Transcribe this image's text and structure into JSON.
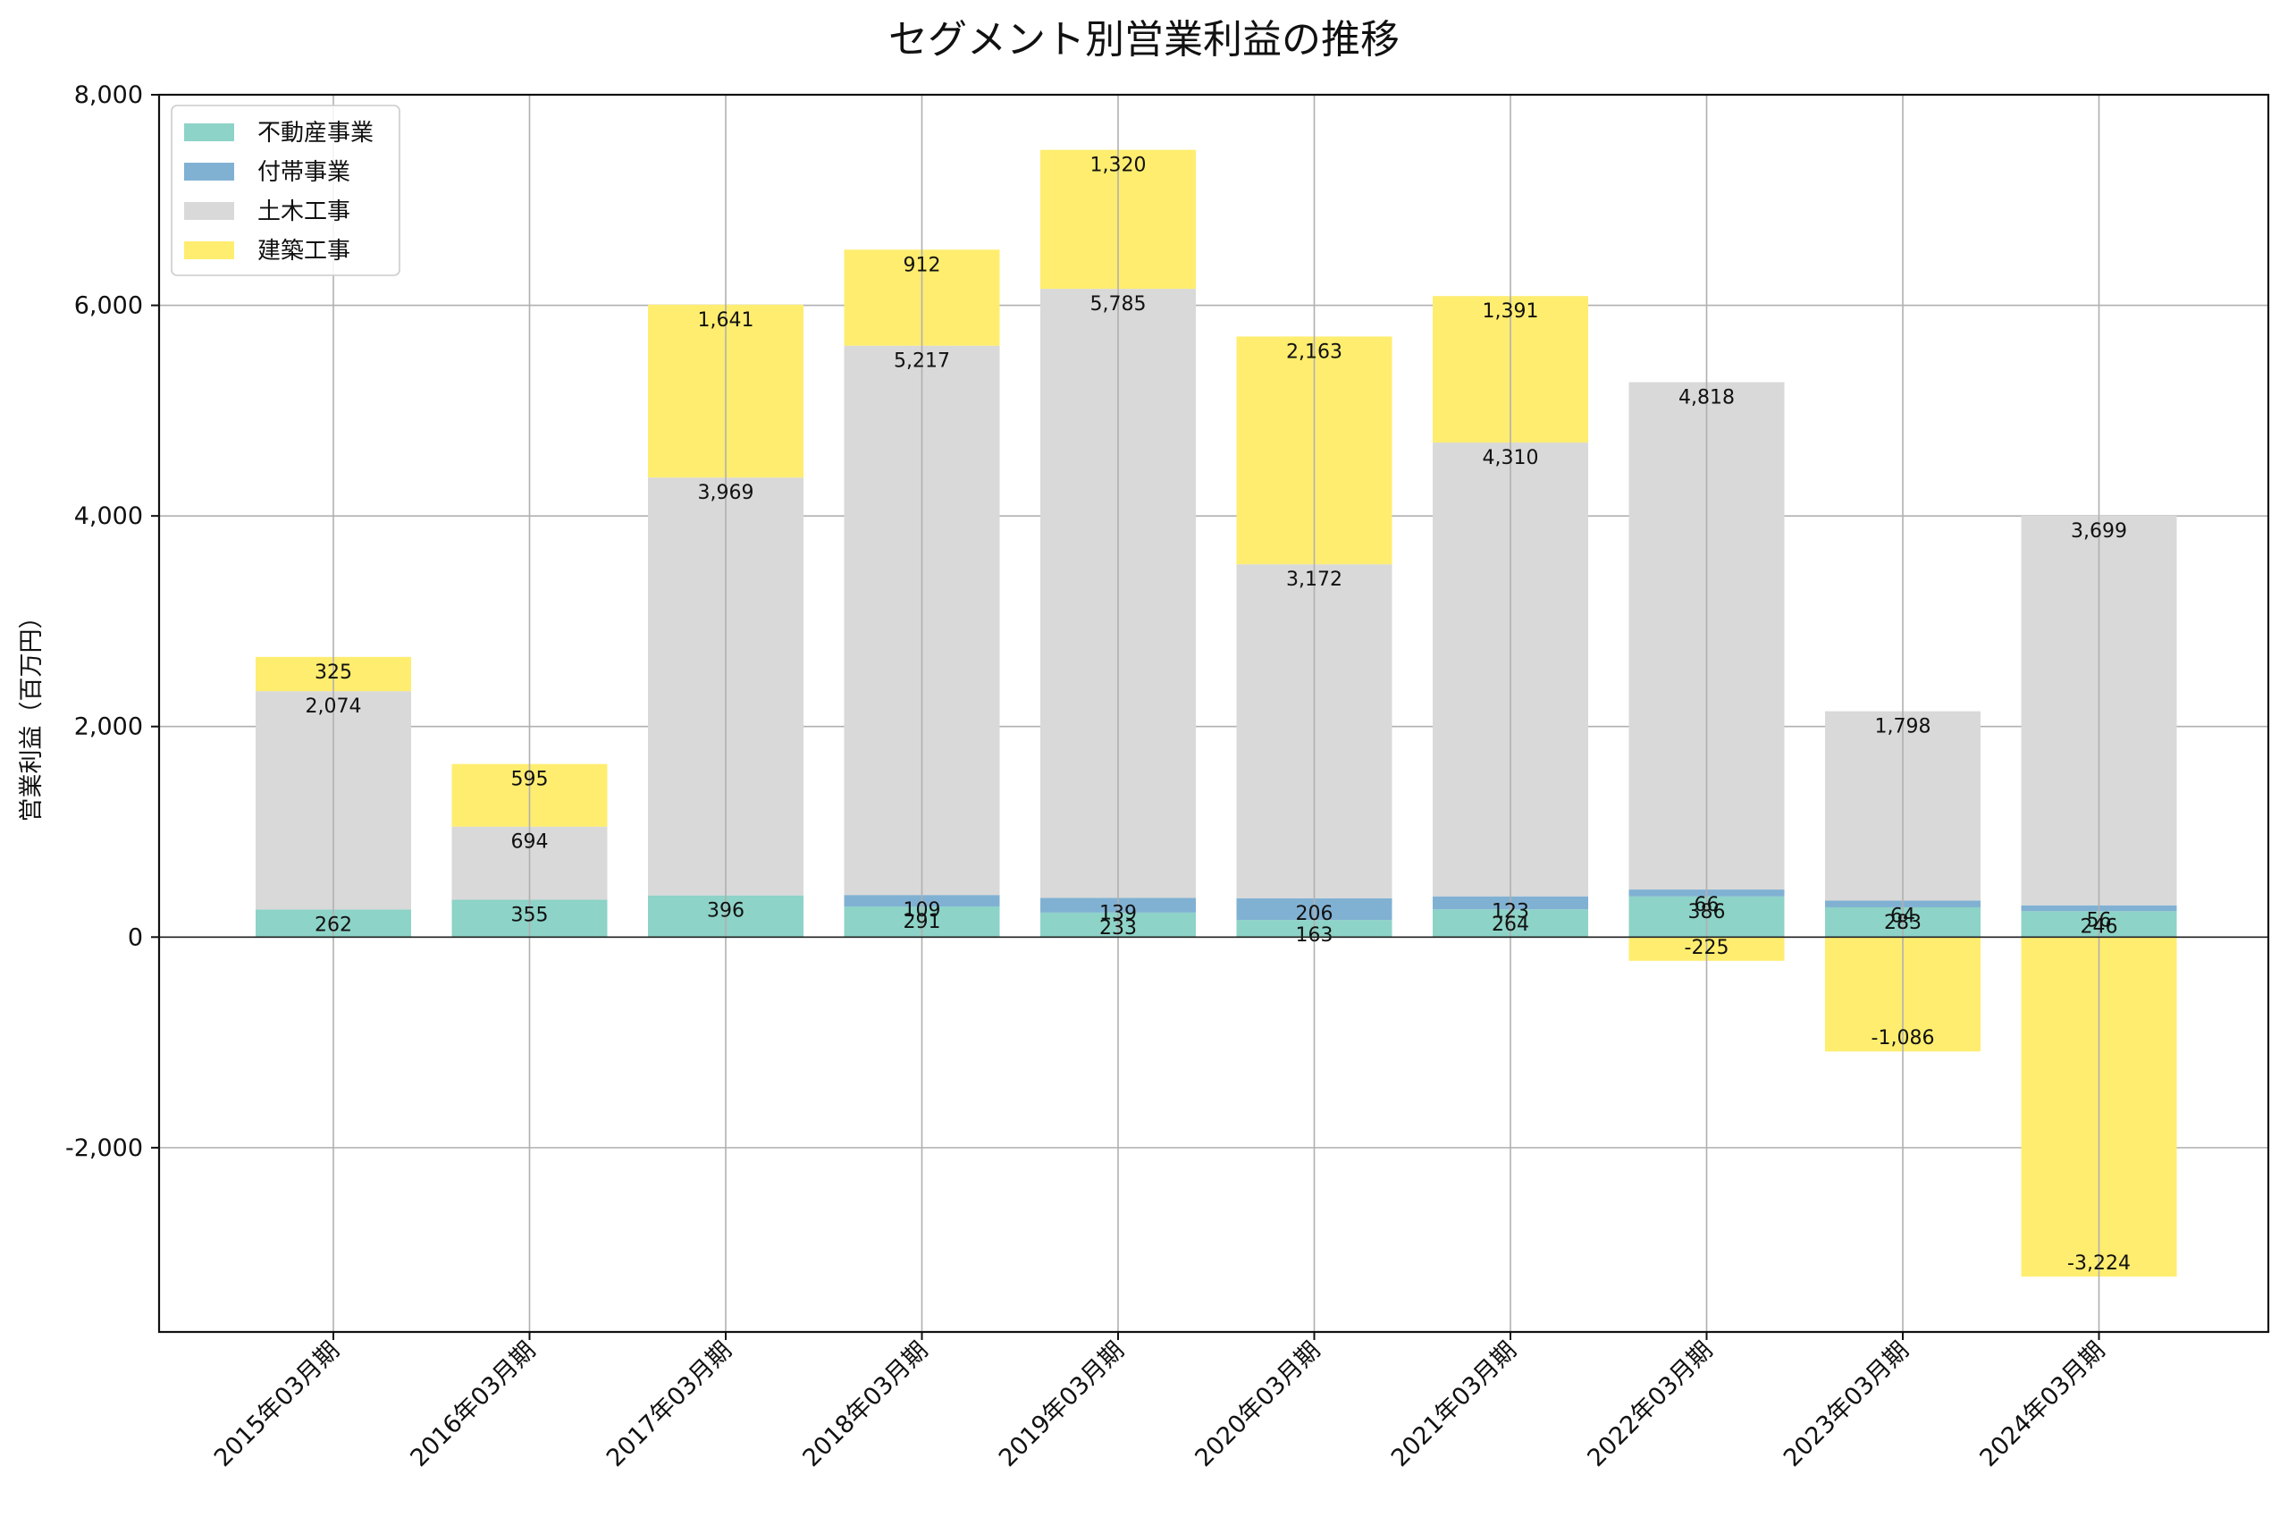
{
  "chart_data": {
    "type": "bar",
    "stacked": true,
    "title": "セグメント別営業利益の推移",
    "xlabel": "",
    "ylabel": "営業利益（百万円）",
    "ylim": [
      -3750,
      8000
    ],
    "yticks": [
      -2000,
      0,
      2000,
      4000,
      6000,
      8000
    ],
    "ytick_labels": [
      "-2,000",
      "0",
      "2,000",
      "4,000",
      "6,000",
      "8,000"
    ],
    "grid": true,
    "legend_position": "top-left",
    "categories": [
      "2015年03月期",
      "2016年03月期",
      "2017年03月期",
      "2018年03月期",
      "2019年03月期",
      "2020年03月期",
      "2021年03月期",
      "2022年03月期",
      "2023年03月期",
      "2024年03月期"
    ],
    "series": [
      {
        "name": "不動産事業",
        "color": "#8dd3c7",
        "values": [
          262,
          355,
          396,
          291,
          233,
          163,
          264,
          386,
          283,
          246
        ]
      },
      {
        "name": "付帯事業",
        "color": "#80b1d3",
        "values": [
          null,
          null,
          null,
          109,
          139,
          206,
          123,
          66,
          64,
          56
        ]
      },
      {
        "name": "土木工事",
        "color": "#d9d9d9",
        "values": [
          2074,
          694,
          3969,
          5217,
          5785,
          3172,
          4310,
          4818,
          1798,
          3699
        ]
      },
      {
        "name": "建築工事",
        "color": "#ffed6f",
        "values": [
          325,
          595,
          1641,
          912,
          1320,
          2163,
          1391,
          -225,
          -1086,
          -3224
        ]
      }
    ]
  }
}
